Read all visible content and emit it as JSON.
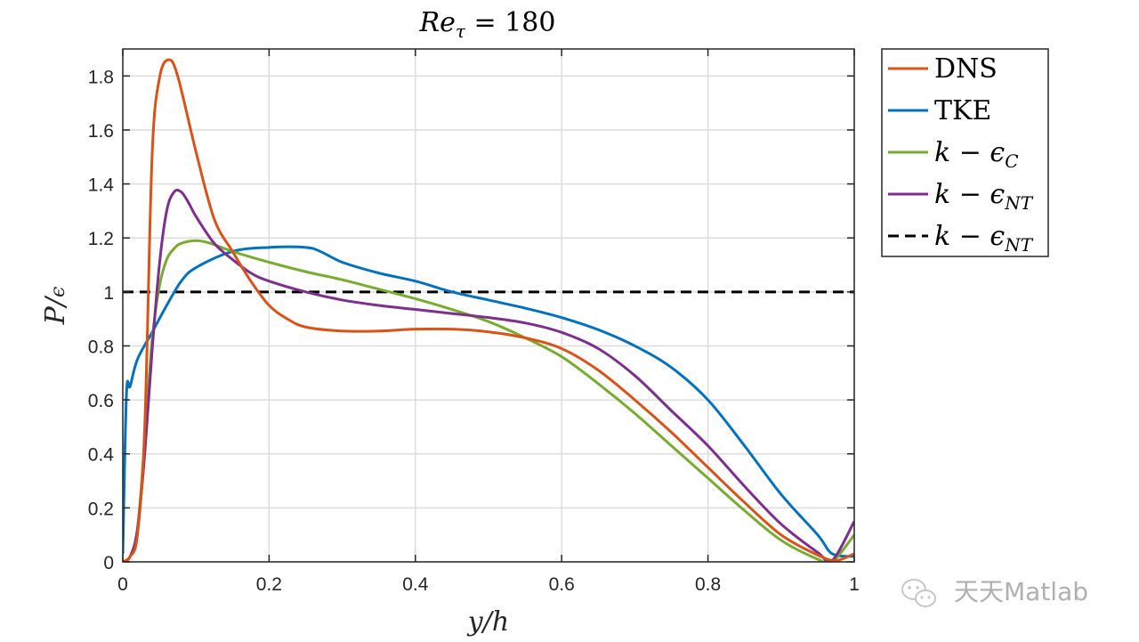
{
  "watermark": {
    "text": "天天Matlab",
    "icon": "wechat-icon"
  },
  "chart_data": {
    "type": "line",
    "title": "Re_τ = 180",
    "xlabel": "y/h",
    "ylabel": "P/ϵ",
    "xlim": [
      0,
      1
    ],
    "ylim": [
      0,
      1.9
    ],
    "xticks": [
      "0",
      "0.2",
      "0.4",
      "0.6",
      "0.8",
      "1"
    ],
    "yticks": [
      "0",
      "0.2",
      "0.4",
      "0.6",
      "0.8",
      "1",
      "1.2",
      "1.4",
      "1.6",
      "1.8"
    ],
    "grid": true,
    "legend_position": "outside-top-right",
    "series": [
      {
        "name": "DNS",
        "legend_label": "DNS",
        "color": "#D95319",
        "dash": "solid",
        "points": [
          [
            0,
            0
          ],
          [
            0.01,
            0.02
          ],
          [
            0.02,
            0.1
          ],
          [
            0.03,
            0.5
          ],
          [
            0.04,
            1.5
          ],
          [
            0.05,
            1.79
          ],
          [
            0.0625,
            1.86
          ],
          [
            0.075,
            1.8
          ],
          [
            0.1,
            1.52
          ],
          [
            0.125,
            1.27
          ],
          [
            0.15,
            1.15
          ],
          [
            0.175,
            1.04
          ],
          [
            0.2,
            0.95
          ],
          [
            0.225,
            0.9
          ],
          [
            0.25,
            0.87
          ],
          [
            0.3,
            0.855
          ],
          [
            0.35,
            0.855
          ],
          [
            0.4,
            0.862
          ],
          [
            0.45,
            0.862
          ],
          [
            0.5,
            0.852
          ],
          [
            0.55,
            0.83
          ],
          [
            0.6,
            0.79
          ],
          [
            0.65,
            0.71
          ],
          [
            0.7,
            0.6
          ],
          [
            0.75,
            0.48
          ],
          [
            0.8,
            0.35
          ],
          [
            0.85,
            0.22
          ],
          [
            0.9,
            0.1
          ],
          [
            0.95,
            0.025
          ],
          [
            0.975,
            0.005
          ],
          [
            1,
            0.03
          ]
        ]
      },
      {
        "name": "TKE",
        "legend_label": "TKE",
        "color": "#0072BD",
        "dash": "solid",
        "points": [
          [
            0,
            0.03
          ],
          [
            0.005,
            0.62
          ],
          [
            0.01,
            0.65
          ],
          [
            0.02,
            0.75
          ],
          [
            0.04,
            0.85
          ],
          [
            0.06,
            0.95
          ],
          [
            0.08,
            1.04
          ],
          [
            0.1,
            1.09
          ],
          [
            0.15,
            1.15
          ],
          [
            0.2,
            1.165
          ],
          [
            0.25,
            1.165
          ],
          [
            0.27,
            1.15
          ],
          [
            0.3,
            1.11
          ],
          [
            0.35,
            1.07
          ],
          [
            0.4,
            1.04
          ],
          [
            0.45,
            1.0
          ],
          [
            0.5,
            0.97
          ],
          [
            0.55,
            0.94
          ],
          [
            0.6,
            0.905
          ],
          [
            0.65,
            0.86
          ],
          [
            0.7,
            0.8
          ],
          [
            0.75,
            0.72
          ],
          [
            0.8,
            0.6
          ],
          [
            0.85,
            0.43
          ],
          [
            0.9,
            0.25
          ],
          [
            0.95,
            0.1
          ],
          [
            0.97,
            0.03
          ],
          [
            1,
            0.02
          ]
        ]
      },
      {
        "name": "k−ϵ_C",
        "legend_label": "k − ϵ_C",
        "color": "#77AC30",
        "dash": "solid",
        "points": [
          [
            0,
            0
          ],
          [
            0.01,
            0.02
          ],
          [
            0.02,
            0.12
          ],
          [
            0.03,
            0.45
          ],
          [
            0.04,
            0.82
          ],
          [
            0.05,
            1.02
          ],
          [
            0.06,
            1.12
          ],
          [
            0.07,
            1.16
          ],
          [
            0.08,
            1.18
          ],
          [
            0.1,
            1.19
          ],
          [
            0.12,
            1.18
          ],
          [
            0.15,
            1.15
          ],
          [
            0.2,
            1.11
          ],
          [
            0.25,
            1.075
          ],
          [
            0.3,
            1.045
          ],
          [
            0.35,
            1.01
          ],
          [
            0.4,
            0.975
          ],
          [
            0.45,
            0.935
          ],
          [
            0.5,
            0.89
          ],
          [
            0.55,
            0.83
          ],
          [
            0.6,
            0.76
          ],
          [
            0.65,
            0.66
          ],
          [
            0.7,
            0.55
          ],
          [
            0.75,
            0.43
          ],
          [
            0.8,
            0.31
          ],
          [
            0.85,
            0.19
          ],
          [
            0.9,
            0.08
          ],
          [
            0.95,
            0.01
          ],
          [
            0.97,
            0.0
          ],
          [
            1,
            0.1
          ]
        ]
      },
      {
        "name": "k−ϵ_NT",
        "legend_label": "k − ϵ_NT",
        "color": "#7E2F8E",
        "dash": "solid",
        "points": [
          [
            0,
            0
          ],
          [
            0.01,
            0.02
          ],
          [
            0.02,
            0.12
          ],
          [
            0.03,
            0.4
          ],
          [
            0.04,
            0.78
          ],
          [
            0.05,
            1.1
          ],
          [
            0.06,
            1.3
          ],
          [
            0.07,
            1.37
          ],
          [
            0.08,
            1.37
          ],
          [
            0.09,
            1.33
          ],
          [
            0.1,
            1.28
          ],
          [
            0.125,
            1.18
          ],
          [
            0.15,
            1.12
          ],
          [
            0.175,
            1.07
          ],
          [
            0.2,
            1.04
          ],
          [
            0.25,
            1.0
          ],
          [
            0.3,
            0.97
          ],
          [
            0.35,
            0.95
          ],
          [
            0.4,
            0.935
          ],
          [
            0.45,
            0.92
          ],
          [
            0.5,
            0.905
          ],
          [
            0.55,
            0.885
          ],
          [
            0.6,
            0.85
          ],
          [
            0.65,
            0.79
          ],
          [
            0.7,
            0.69
          ],
          [
            0.75,
            0.56
          ],
          [
            0.8,
            0.43
          ],
          [
            0.85,
            0.28
          ],
          [
            0.9,
            0.14
          ],
          [
            0.95,
            0.035
          ],
          [
            0.97,
            0.005
          ],
          [
            1,
            0.15
          ]
        ]
      },
      {
        "name": "k−ϵ_NT",
        "legend_label": "k − ϵ_NT",
        "color": "#000000",
        "dash": "dashed",
        "points": [
          [
            0,
            1
          ],
          [
            1,
            1
          ]
        ]
      }
    ]
  }
}
